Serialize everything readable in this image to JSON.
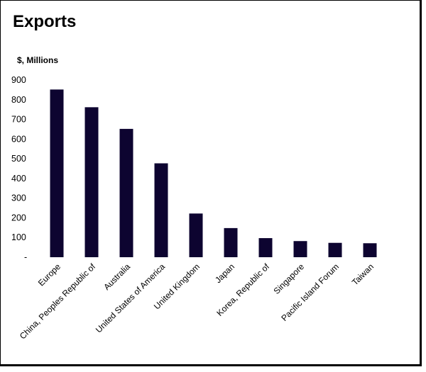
{
  "chart_data": {
    "type": "bar",
    "title": "Exports",
    "ylabel": "$, Millions",
    "xlabel": "",
    "ylim": [
      0,
      900
    ],
    "yticks": [
      "-",
      "100",
      "200",
      "300",
      "400",
      "500",
      "600",
      "700",
      "800",
      "900"
    ],
    "categories": [
      "Europe",
      "China, Peoples Republic of",
      "Australia",
      "United States of America",
      "United Kingdom",
      "Japan",
      "Korea, Republic of",
      "Singapore",
      "Pacific Island Forum",
      "Taiwan"
    ],
    "values": [
      852,
      762,
      652,
      477,
      222,
      148,
      97,
      82,
      73,
      71
    ],
    "bar_color": "#0d0430",
    "grid": false,
    "legend": "none"
  }
}
